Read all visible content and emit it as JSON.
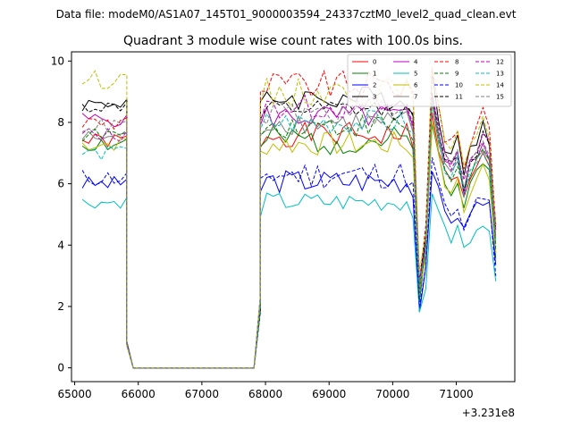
{
  "figure": {
    "suptitle": "Data file: modeM0/AS1A07_145T01_9000003594_24337cztM0_level2_quad_clean.evt",
    "title": "Quadrant 3 module wise count rates with 100.0s bins.",
    "offset_label": "+3.231e8"
  },
  "chart_data": {
    "type": "line",
    "title": "Quadrant 3 module wise count rates with 100.0s bins.",
    "xlabel": "",
    "ylabel": "",
    "x_offset": 323100000,
    "xlim": [
      64950,
      71920
    ],
    "ylim": [
      -0.45,
      10.3
    ],
    "xticks": [
      65000,
      66000,
      67000,
      68000,
      69000,
      70000,
      71000
    ],
    "yticks": [
      0,
      2,
      4,
      6,
      8,
      10
    ],
    "grid": false,
    "legend": {
      "placement": "top-right",
      "columns": 4
    },
    "segments": [
      {
        "x_start": 65120,
        "x_end": 65820
      },
      {
        "x_start": 67920,
        "x_end": 71620
      }
    ],
    "gap": {
      "x": [
        65820,
        65920,
        66020,
        67820,
        67920
      ],
      "values": [
        1.0,
        0.0,
        0.0,
        0.0,
        2.0
      ]
    },
    "series": [
      {
        "name": "0",
        "color": "#ff0000",
        "dash": false,
        "level": 7.6,
        "first": 7.4,
        "amp": 0.25,
        "seed": 1
      },
      {
        "name": "1",
        "color": "#008000",
        "dash": false,
        "level": 7.4,
        "first": 7.3,
        "amp": 0.3,
        "seed": 2
      },
      {
        "name": "2",
        "color": "#0000ff",
        "dash": false,
        "level": 6.1,
        "first": 6.0,
        "amp": 0.25,
        "seed": 3
      },
      {
        "name": "3",
        "color": "#000000",
        "dash": false,
        "level": 8.8,
        "first": 8.6,
        "amp": 0.25,
        "seed": 4
      },
      {
        "name": "4",
        "color": "#bf00bf",
        "dash": false,
        "level": 8.2,
        "first": 8.1,
        "amp": 0.25,
        "seed": 5
      },
      {
        "name": "5",
        "color": "#00bfbf",
        "dash": false,
        "level": 5.4,
        "first": 5.4,
        "amp": 0.2,
        "seed": 6
      },
      {
        "name": "6",
        "color": "#bfbf00",
        "dash": false,
        "level": 7.3,
        "first": 7.3,
        "amp": 0.25,
        "seed": 7
      },
      {
        "name": "7",
        "color": "#808080",
        "dash": false,
        "level": 8.0,
        "first": 7.5,
        "amp": 0.25,
        "seed": 8
      },
      {
        "name": "8",
        "color": "#ff0000",
        "dash": true,
        "level": 9.2,
        "first": 8.0,
        "amp": 0.3,
        "seed": 9
      },
      {
        "name": "9",
        "color": "#008000",
        "dash": true,
        "level": 7.9,
        "first": 7.6,
        "amp": 0.25,
        "seed": 10
      },
      {
        "name": "10",
        "color": "#0000ff",
        "dash": true,
        "level": 6.3,
        "first": 6.2,
        "amp": 0.3,
        "seed": 11
      },
      {
        "name": "11",
        "color": "#000000",
        "dash": true,
        "level": 8.4,
        "first": 8.5,
        "amp": 0.2,
        "seed": 12
      },
      {
        "name": "12",
        "color": "#bf00bf",
        "dash": true,
        "level": 8.5,
        "first": 7.6,
        "amp": 0.25,
        "seed": 13
      },
      {
        "name": "13",
        "color": "#00bfbf",
        "dash": true,
        "level": 8.0,
        "first": 7.0,
        "amp": 0.25,
        "seed": 14
      },
      {
        "name": "14",
        "color": "#bfbf00",
        "dash": true,
        "level": 9.0,
        "first": 9.4,
        "amp": 0.3,
        "seed": 15
      },
      {
        "name": "15",
        "color": "#808080",
        "dash": true,
        "level": 8.3,
        "first": 7.9,
        "amp": 0.25,
        "seed": 16
      }
    ]
  }
}
